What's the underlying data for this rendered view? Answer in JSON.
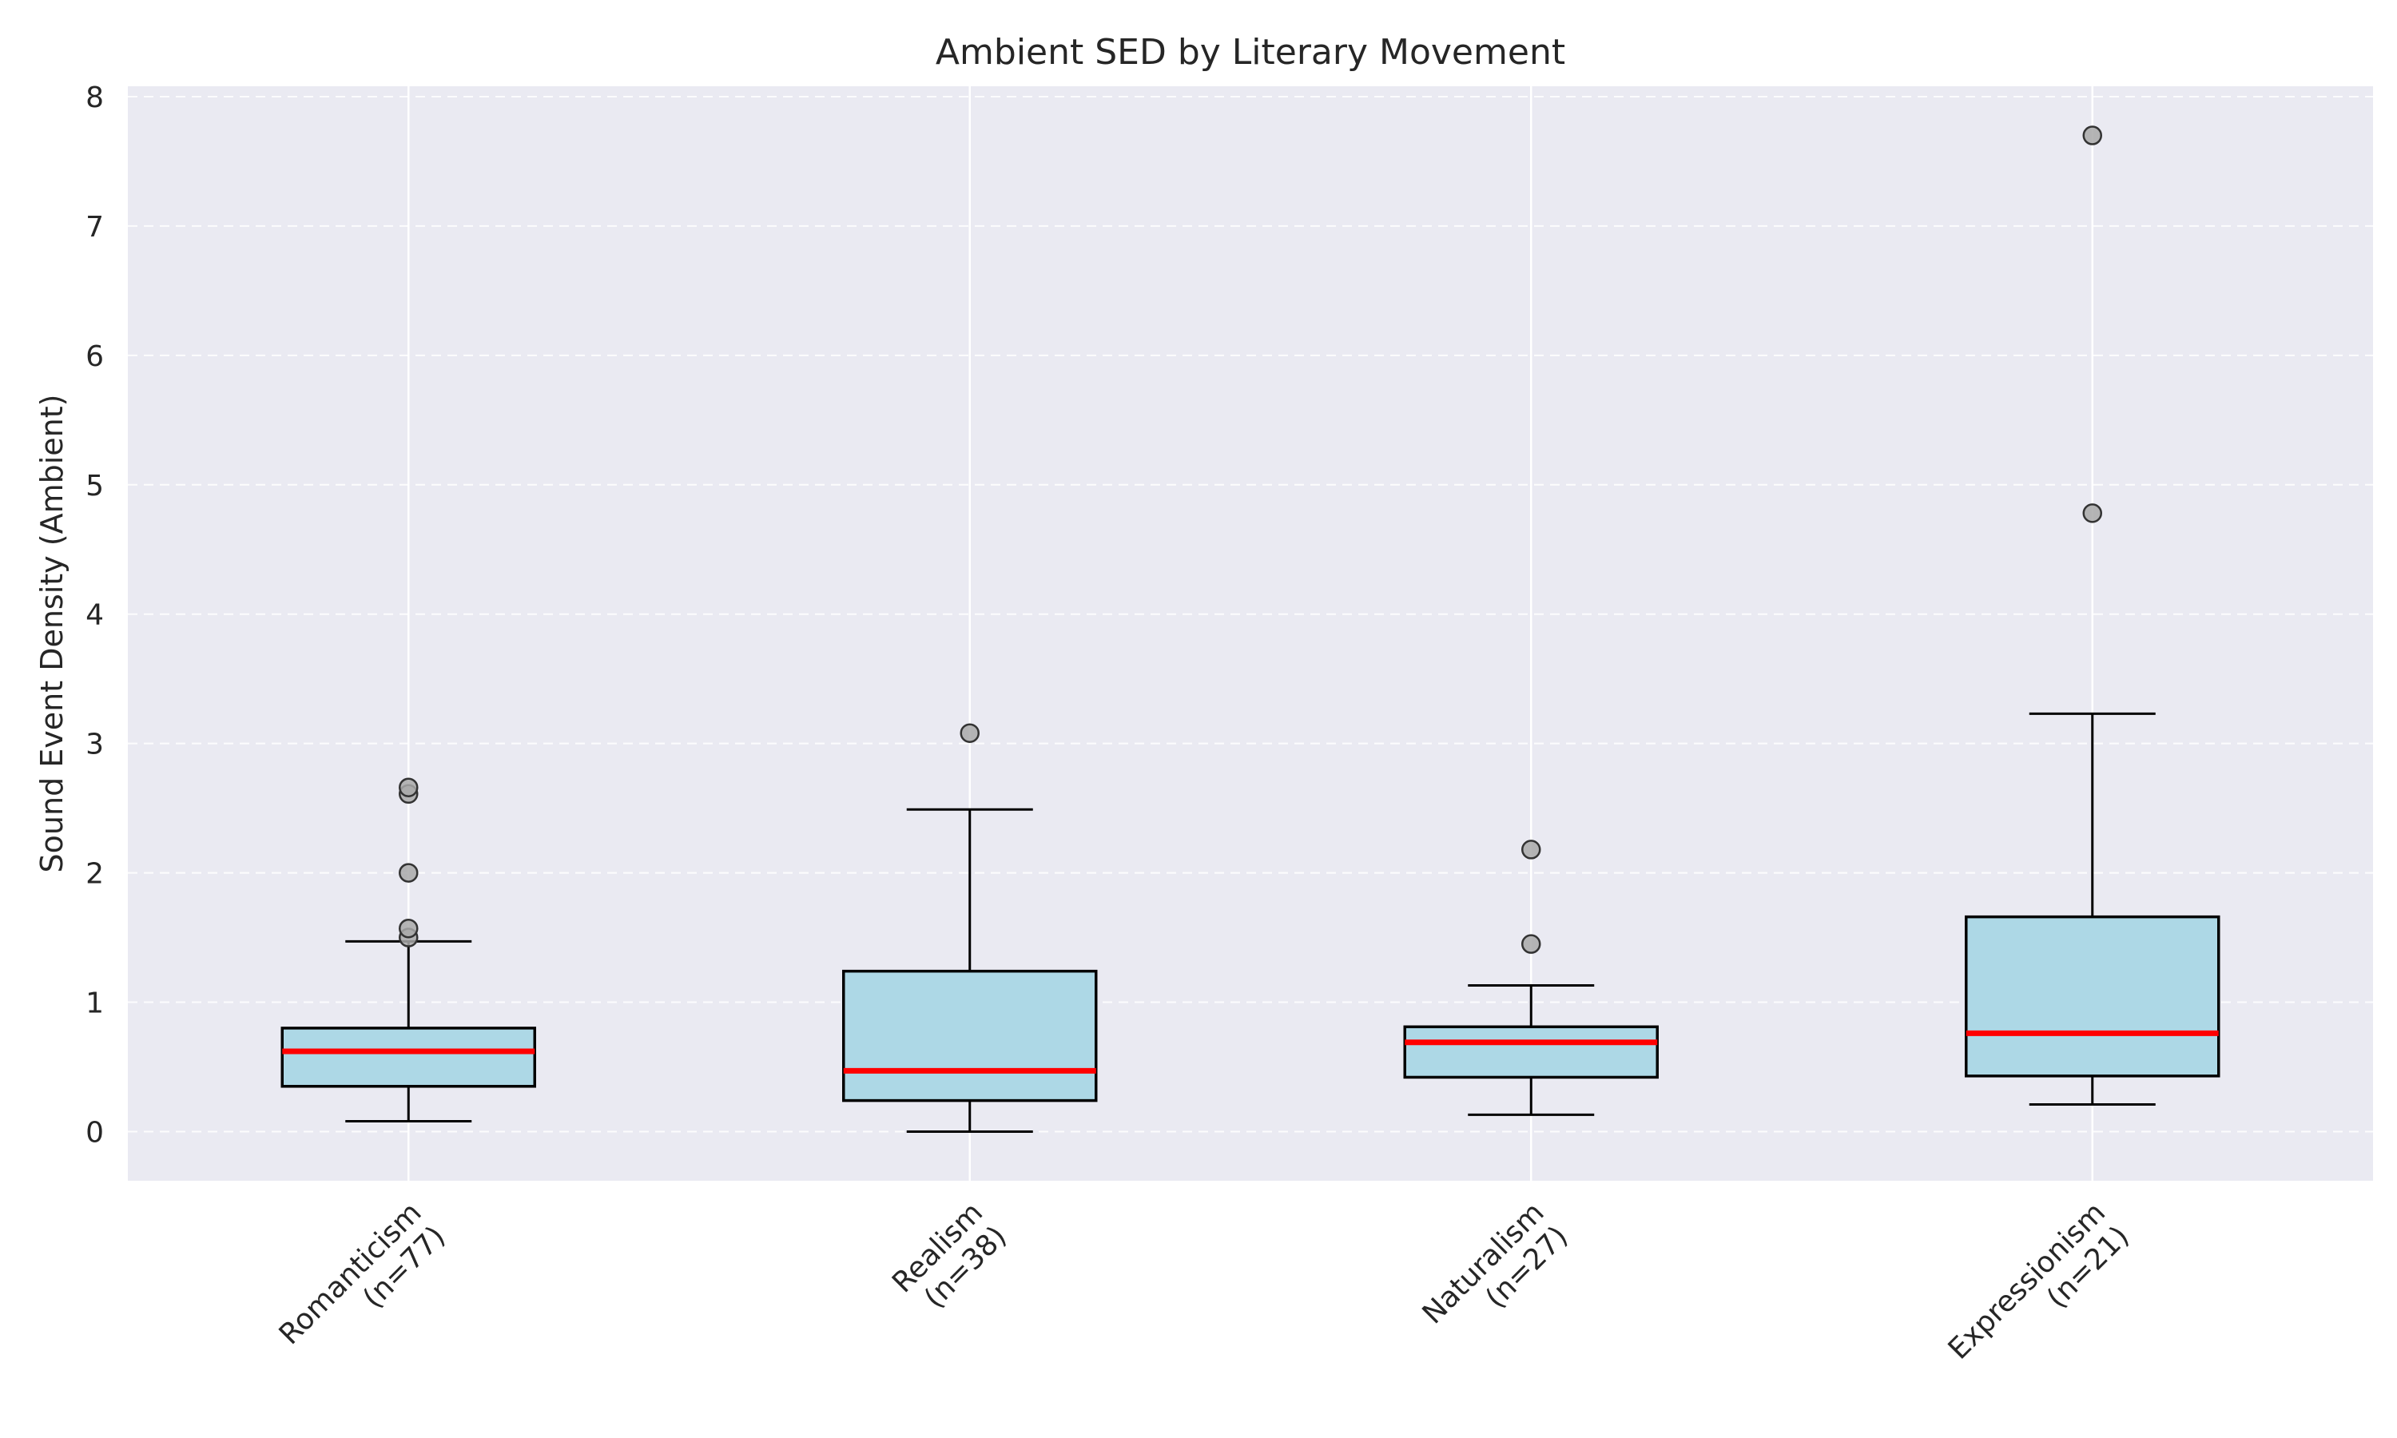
{
  "chart_data": {
    "type": "box",
    "title": "Ambient SED by Literary Movement",
    "xlabel": "",
    "ylabel": "Sound Event Density (Ambient)",
    "ylim": [
      -0.38,
      8.08
    ],
    "yticks": [
      0,
      1,
      2,
      3,
      4,
      5,
      6,
      7,
      8
    ],
    "grid": true,
    "categories": [
      {
        "line1": "Romanticism",
        "line2": "(n=77)"
      },
      {
        "line1": "Realism",
        "line2": "(n=38)"
      },
      {
        "line1": "Naturalism",
        "line2": "(n=27)"
      },
      {
        "line1": "Expressionism",
        "line2": "(n=21)"
      }
    ],
    "boxes": [
      {
        "whisker_low": 0.08,
        "q1": 0.35,
        "median": 0.62,
        "q3": 0.8,
        "whisker_high": 1.47,
        "outliers": [
          1.5,
          1.57,
          2.0,
          2.61,
          2.66
        ]
      },
      {
        "whisker_low": 0.0,
        "q1": 0.24,
        "median": 0.47,
        "q3": 1.24,
        "whisker_high": 2.49,
        "outliers": [
          3.08
        ]
      },
      {
        "whisker_low": 0.13,
        "q1": 0.42,
        "median": 0.69,
        "q3": 0.81,
        "whisker_high": 1.13,
        "outliers": [
          1.45,
          2.18
        ]
      },
      {
        "whisker_low": 0.21,
        "q1": 0.43,
        "median": 0.76,
        "q3": 1.66,
        "whisker_high": 3.23,
        "outliers": [
          4.78,
          7.7
        ]
      }
    ],
    "colors": {
      "box_fill": "#add8e6",
      "median": "#ff0000",
      "outlier": "#a9a9a9",
      "plot_bg": "#eaeaf2",
      "grid": "#ffffff"
    }
  }
}
